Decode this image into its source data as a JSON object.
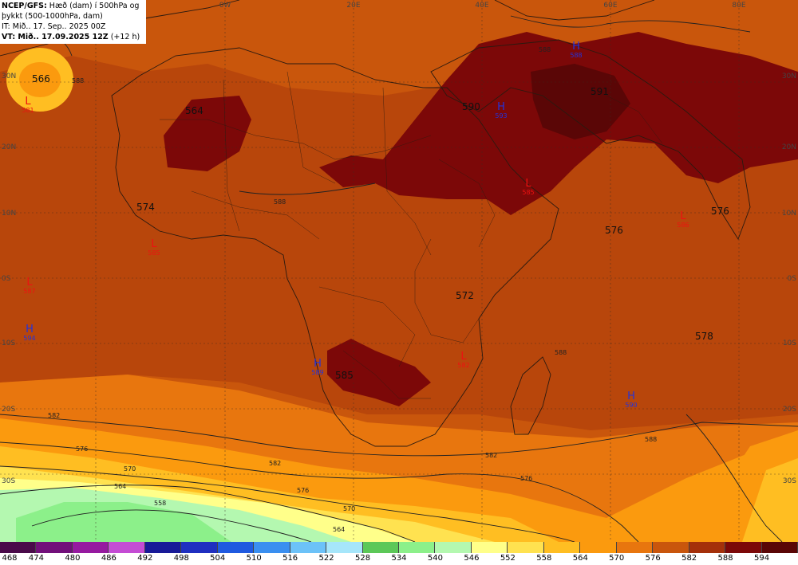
{
  "info": {
    "line1_bold": "NCEP/GFS:",
    "line1_rest": " Hæð (dam) í 500hPa og",
    "line2": "þykkt (500-1000hPa, dam)",
    "line3": "IT: Mið.. 17. Sep.. 2025 00Z",
    "line4_bold": "VT: Mið.. 17.09.2025 12Z",
    "line4_rest": " (+12 h)"
  },
  "grid": {
    "lon_labels": [
      "0W",
      "20E",
      "40E",
      "60E",
      "80E"
    ],
    "lat_labels": [
      "30N",
      "20N",
      "10N",
      "0S",
      "10S",
      "20S",
      "30S"
    ]
  },
  "centers": [
    {
      "type": "L",
      "value": "581",
      "color": "#ee1111"
    },
    {
      "type": "L",
      "value": "585",
      "color": "#ee1111"
    },
    {
      "type": "L",
      "value": "587",
      "color": "#ee1111"
    },
    {
      "type": "H",
      "value": "588",
      "color": "#2233dd"
    },
    {
      "type": "H",
      "value": "589",
      "color": "#2233dd"
    },
    {
      "type": "H",
      "value": "590",
      "color": "#2233dd"
    },
    {
      "type": "H",
      "value": "593",
      "color": "#2233dd"
    },
    {
      "type": "H",
      "value": "594",
      "color": "#2233dd"
    },
    {
      "type": "L",
      "value": "585",
      "color": "#ee1111"
    },
    {
      "type": "L",
      "value": "582",
      "color": "#ee1111"
    },
    {
      "type": "L",
      "value": "586",
      "color": "#ee1111"
    }
  ],
  "thickness_labels": [
    "566",
    "564",
    "574",
    "590",
    "591",
    "576",
    "576",
    "572",
    "578",
    "585"
  ],
  "contour_labels": [
    "582",
    "576",
    "570",
    "564",
    "558",
    "582",
    "576",
    "570",
    "564",
    "588",
    "588",
    "588",
    "588",
    "588",
    "582",
    "576"
  ],
  "legend": {
    "values": [
      "468",
      "474",
      "480",
      "486",
      "492",
      "498",
      "504",
      "510",
      "516",
      "522",
      "528",
      "534",
      "540",
      "546",
      "552",
      "558",
      "564",
      "570",
      "576",
      "582",
      "588",
      "594"
    ],
    "colors": [
      "#4a0a4a",
      "#72107a",
      "#961aa0",
      "#c44cd4",
      "#181a98",
      "#1f2fc0",
      "#1f5ae0",
      "#3a8ff0",
      "#6cc2f8",
      "#a6e6fa",
      "#5cc858",
      "#8cf08a",
      "#b4f8b0",
      "#ffff8a",
      "#ffe250",
      "#ffbe22",
      "#fb9a0e",
      "#e8760e",
      "#c9560c",
      "#a4300a",
      "#7c0808",
      "#5a0606"
    ]
  }
}
